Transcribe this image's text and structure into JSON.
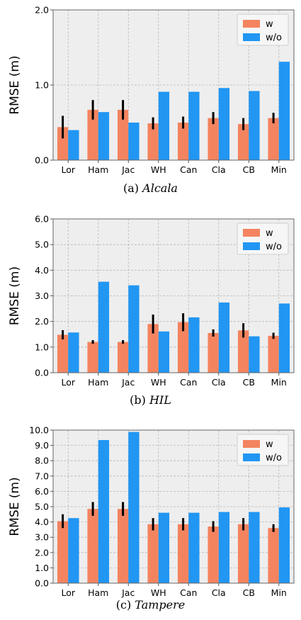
{
  "colors": {
    "w": "#f4845f",
    "wo": "#2196f3",
    "err": "#000000",
    "bg": "#eeeeee",
    "grid": "#b8b8b8"
  },
  "chart_data": [
    {
      "type": "bar",
      "caption_prefix": "(a)",
      "caption_name": "Alcala",
      "ylabel": "RMSE (m)",
      "ylim": [
        0,
        2.0
      ],
      "yticks": [
        0,
        1,
        2
      ],
      "ytick_labels": [
        "0.0",
        "1.0",
        "2.0"
      ],
      "legend": "top-right",
      "grid": true,
      "categories": [
        "Lor",
        "Ham",
        "Jac",
        "WH",
        "Can",
        "Cla",
        "CB",
        "Min"
      ],
      "series": [
        {
          "name": "w",
          "values": [
            0.44,
            0.67,
            0.67,
            0.49,
            0.5,
            0.56,
            0.48,
            0.56
          ],
          "err": [
            0.15,
            0.13,
            0.13,
            0.08,
            0.08,
            0.08,
            0.08,
            0.07
          ]
        },
        {
          "name": "w/o",
          "values": [
            0.4,
            0.64,
            0.5,
            0.91,
            0.91,
            0.96,
            0.92,
            1.31
          ]
        }
      ]
    },
    {
      "type": "bar",
      "caption_prefix": "(b)",
      "caption_name": "HIL",
      "ylabel": "RMSE (m)",
      "ylim": [
        0,
        6.0
      ],
      "yticks": [
        0,
        1,
        2,
        3,
        4,
        5,
        6
      ],
      "ytick_labels": [
        "0.0",
        "1.0",
        "2.0",
        "3.0",
        "4.0",
        "5.0",
        "6.0"
      ],
      "legend": "top-right",
      "grid": true,
      "categories": [
        "Lor",
        "Ham",
        "Jac",
        "WH",
        "Can",
        "Cla",
        "CB",
        "Min"
      ],
      "series": [
        {
          "name": "w",
          "values": [
            1.48,
            1.2,
            1.2,
            1.9,
            1.97,
            1.55,
            1.65,
            1.44
          ],
          "err": [
            0.18,
            0.07,
            0.07,
            0.37,
            0.35,
            0.14,
            0.28,
            0.12
          ]
        },
        {
          "name": "w/o",
          "values": [
            1.57,
            3.55,
            3.41,
            1.61,
            2.16,
            2.74,
            1.42,
            2.7
          ]
        }
      ]
    },
    {
      "type": "bar",
      "caption_prefix": "(c)",
      "caption_name": "Tampere",
      "ylabel": "RMSE (m)",
      "ylim": [
        0,
        10.0
      ],
      "yticks": [
        0,
        1,
        2,
        3,
        4,
        5,
        6,
        7,
        8,
        9,
        10
      ],
      "ytick_labels": [
        "0.0",
        "1.0",
        "2.0",
        "3.0",
        "4.0",
        "5.0",
        "6.0",
        "7.0",
        "8.0",
        "9.0",
        "10.0"
      ],
      "legend": "top-right",
      "grid": true,
      "categories": [
        "Lor",
        "Ham",
        "Jac",
        "WH",
        "Can",
        "Cla",
        "CB",
        "Min"
      ],
      "series": [
        {
          "name": "w",
          "values": [
            4.05,
            4.85,
            4.85,
            3.85,
            3.85,
            3.7,
            3.85,
            3.6
          ],
          "err": [
            0.45,
            0.45,
            0.45,
            0.4,
            0.4,
            0.35,
            0.4,
            0.25
          ]
        },
        {
          "name": "w/o",
          "values": [
            4.25,
            9.35,
            9.88,
            4.6,
            4.6,
            4.65,
            4.65,
            4.95
          ]
        }
      ]
    }
  ]
}
